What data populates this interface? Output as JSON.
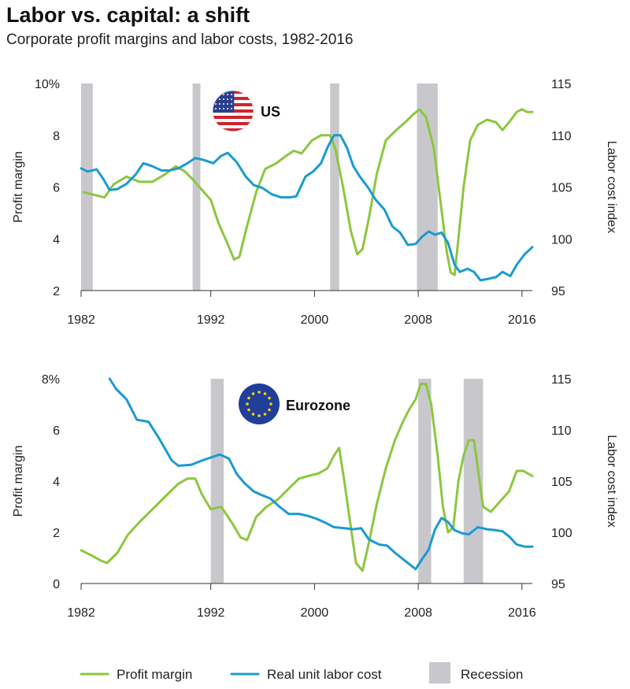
{
  "header": {
    "title": "Labor vs. capital: a shift",
    "subtitle": "Corporate profit margins and labor costs, 1982-2016"
  },
  "colors": {
    "profit_margin": "#8dc63f",
    "labor_cost": "#1a9bd0",
    "recession": "#c8c8cc",
    "axis": "#333333"
  },
  "legend": {
    "items": [
      {
        "label": "Profit margin",
        "type": "line",
        "color": "#8dc63f"
      },
      {
        "label": "Real unit labor cost",
        "type": "line",
        "color": "#1a9bd0"
      },
      {
        "label": "Recession",
        "type": "box",
        "color": "#c8c8cc"
      }
    ],
    "placement": "bottom"
  },
  "chart_data": [
    {
      "type": "line",
      "region": "US",
      "badge_icon": "us-flag-icon",
      "xlim": [
        1982,
        2016.8
      ],
      "x_ticks": [
        1982,
        1992,
        2000,
        2008,
        2016
      ],
      "left_axis": {
        "label": "Profit margin",
        "ylim": [
          2,
          10
        ],
        "ticks": [
          2,
          4,
          6,
          8,
          10
        ],
        "tick_labels": [
          "2",
          "4",
          "6",
          "8",
          "10%"
        ]
      },
      "right_axis": {
        "label": "Labor cost index",
        "ylim": [
          95,
          115
        ],
        "ticks": [
          95,
          100,
          105,
          110,
          115
        ],
        "tick_labels": [
          "95",
          "100",
          "105",
          "110",
          "115"
        ]
      },
      "grid": false,
      "recessions": [
        [
          1982.0,
          1982.9
        ],
        [
          1990.6,
          1991.2
        ],
        [
          2001.2,
          2001.9
        ],
        [
          2007.9,
          2009.5
        ]
      ],
      "series": [
        {
          "name": "Profit margin",
          "axis": "left",
          "color": "#8dc63f",
          "points": [
            [
              1982.2,
              5.8
            ],
            [
              1983,
              5.7
            ],
            [
              1983.8,
              5.6
            ],
            [
              1984.5,
              6.1
            ],
            [
              1985.5,
              6.4
            ],
            [
              1986.5,
              6.2
            ],
            [
              1987.5,
              6.2
            ],
            [
              1988.5,
              6.5
            ],
            [
              1989.3,
              6.8
            ],
            [
              1990,
              6.6
            ],
            [
              1990.6,
              6.3
            ],
            [
              1991.3,
              5.9
            ],
            [
              1992,
              5.5
            ],
            [
              1992.6,
              4.6
            ],
            [
              1993.3,
              3.8
            ],
            [
              1993.8,
              3.2
            ],
            [
              1994.2,
              3.3
            ],
            [
              1994.8,
              4.5
            ],
            [
              1995.5,
              5.8
            ],
            [
              1996.2,
              6.7
            ],
            [
              1997,
              6.9
            ],
            [
              1997.8,
              7.2
            ],
            [
              1998.4,
              7.4
            ],
            [
              1999,
              7.3
            ],
            [
              1999.8,
              7.8
            ],
            [
              2000.5,
              8.0
            ],
            [
              2001.2,
              8.0
            ],
            [
              2001.6,
              7.5
            ],
            [
              2002.2,
              6.0
            ],
            [
              2002.8,
              4.3
            ],
            [
              2003.3,
              3.4
            ],
            [
              2003.7,
              3.6
            ],
            [
              2004.2,
              4.8
            ],
            [
              2004.8,
              6.5
            ],
            [
              2005.5,
              7.8
            ],
            [
              2006.3,
              8.2
            ],
            [
              2007,
              8.5
            ],
            [
              2007.6,
              8.8
            ],
            [
              2008.1,
              9.0
            ],
            [
              2008.6,
              8.7
            ],
            [
              2009.2,
              7.5
            ],
            [
              2009.7,
              5.5
            ],
            [
              2010.2,
              3.5
            ],
            [
              2010.5,
              2.7
            ],
            [
              2010.8,
              2.6
            ],
            [
              2011.1,
              4.0
            ],
            [
              2011.5,
              6.0
            ],
            [
              2012,
              7.8
            ],
            [
              2012.6,
              8.4
            ],
            [
              2013.3,
              8.6
            ],
            [
              2014,
              8.5
            ],
            [
              2014.5,
              8.2
            ],
            [
              2015,
              8.5
            ],
            [
              2015.6,
              8.9
            ],
            [
              2016,
              9.0
            ],
            [
              2016.4,
              8.9
            ],
            [
              2016.8,
              8.9
            ]
          ]
        },
        {
          "name": "Real unit labor cost",
          "axis": "right",
          "color": "#1a9bd0",
          "points": [
            [
              1982,
              106.8
            ],
            [
              1982.5,
              106.5
            ],
            [
              1983.2,
              106.7
            ],
            [
              1983.7,
              105.8
            ],
            [
              1984.2,
              104.7
            ],
            [
              1984.8,
              104.8
            ],
            [
              1985.5,
              105.3
            ],
            [
              1986.2,
              106.2
            ],
            [
              1986.8,
              107.3
            ],
            [
              1987.5,
              107.0
            ],
            [
              1988.2,
              106.6
            ],
            [
              1988.8,
              106.6
            ],
            [
              1989.5,
              106.8
            ],
            [
              1990.2,
              107.3
            ],
            [
              1990.8,
              107.8
            ],
            [
              1991.5,
              107.6
            ],
            [
              1992.2,
              107.3
            ],
            [
              1992.8,
              108.0
            ],
            [
              1993.3,
              108.3
            ],
            [
              1994,
              107.4
            ],
            [
              1994.7,
              106.0
            ],
            [
              1995.3,
              105.2
            ],
            [
              1996,
              104.9
            ],
            [
              1996.7,
              104.3
            ],
            [
              1997.4,
              104.0
            ],
            [
              1998.1,
              104.0
            ],
            [
              1998.6,
              104.1
            ],
            [
              1999.3,
              106.0
            ],
            [
              1999.9,
              106.5
            ],
            [
              2000.5,
              107.3
            ],
            [
              2001,
              108.8
            ],
            [
              2001.5,
              110.0
            ],
            [
              2002,
              110.0
            ],
            [
              2002.5,
              108.8
            ],
            [
              2003,
              107.0
            ],
            [
              2003.5,
              106.0
            ],
            [
              2004.1,
              105.0
            ],
            [
              2004.7,
              103.8
            ],
            [
              2005.4,
              102.8
            ],
            [
              2006,
              101.2
            ],
            [
              2006.6,
              100.6
            ],
            [
              2007.2,
              99.4
            ],
            [
              2007.8,
              99.5
            ],
            [
              2008.3,
              100.2
            ],
            [
              2008.8,
              100.7
            ],
            [
              2009.3,
              100.4
            ],
            [
              2009.8,
              100.6
            ],
            [
              2010.3,
              99.6
            ],
            [
              2010.8,
              97.5
            ],
            [
              2011.2,
              96.8
            ],
            [
              2011.8,
              97.1
            ],
            [
              2012.3,
              96.8
            ],
            [
              2012.8,
              96.0
            ],
            [
              2013.3,
              96.1
            ],
            [
              2014,
              96.3
            ],
            [
              2014.5,
              96.8
            ],
            [
              2015.1,
              96.4
            ],
            [
              2015.6,
              97.5
            ],
            [
              2016.2,
              98.5
            ],
            [
              2016.8,
              99.2
            ]
          ]
        }
      ]
    },
    {
      "type": "line",
      "region": "Eurozone",
      "badge_icon": "eu-flag-icon",
      "xlim": [
        1982,
        2016.8
      ],
      "x_ticks": [
        1982,
        1992,
        2000,
        2008,
        2016
      ],
      "left_axis": {
        "label": "Profit margin",
        "ylim": [
          0,
          8
        ],
        "ticks": [
          0,
          2,
          4,
          6,
          8
        ],
        "tick_labels": [
          "0",
          "2",
          "4",
          "6",
          "8%"
        ]
      },
      "right_axis": {
        "label": "Labor cost index",
        "ylim": [
          95,
          115
        ],
        "ticks": [
          95,
          100,
          105,
          110,
          115
        ],
        "tick_labels": [
          "95",
          "100",
          "105",
          "110",
          "115"
        ]
      },
      "grid": false,
      "recessions": [
        [
          1992.0,
          1993.0
        ],
        [
          2008.0,
          2009.0
        ],
        [
          2011.5,
          2013.0
        ]
      ],
      "series": [
        {
          "name": "Profit margin",
          "axis": "left",
          "color": "#8dc63f",
          "points": [
            [
              1982,
              1.3
            ],
            [
              1982.8,
              1.1
            ],
            [
              1983.5,
              0.9
            ],
            [
              1984,
              0.8
            ],
            [
              1984.8,
              1.2
            ],
            [
              1985.6,
              1.9
            ],
            [
              1986.5,
              2.4
            ],
            [
              1987.5,
              2.9
            ],
            [
              1988.5,
              3.4
            ],
            [
              1989.5,
              3.9
            ],
            [
              1990.2,
              4.1
            ],
            [
              1990.8,
              4.1
            ],
            [
              1991.3,
              3.5
            ],
            [
              1992,
              2.9
            ],
            [
              1992.8,
              3.0
            ],
            [
              1993.6,
              2.4
            ],
            [
              1994.3,
              1.8
            ],
            [
              1994.8,
              1.7
            ],
            [
              1995.5,
              2.6
            ],
            [
              1996.3,
              3.0
            ],
            [
              1997.2,
              3.3
            ],
            [
              1998,
              3.7
            ],
            [
              1998.8,
              4.1
            ],
            [
              1999.5,
              4.2
            ],
            [
              2000.3,
              4.3
            ],
            [
              2001,
              4.5
            ],
            [
              2001.5,
              5.0
            ],
            [
              2001.9,
              5.3
            ],
            [
              2002.3,
              4.0
            ],
            [
              2002.8,
              2.2
            ],
            [
              2003.2,
              0.8
            ],
            [
              2003.7,
              0.5
            ],
            [
              2004.2,
              1.6
            ],
            [
              2004.8,
              3.1
            ],
            [
              2005.5,
              4.5
            ],
            [
              2006.2,
              5.6
            ],
            [
              2006.8,
              6.3
            ],
            [
              2007.3,
              6.8
            ],
            [
              2007.8,
              7.2
            ],
            [
              2008.2,
              7.8
            ],
            [
              2008.6,
              7.8
            ],
            [
              2009,
              7.0
            ],
            [
              2009.5,
              5.0
            ],
            [
              2009.9,
              3.0
            ],
            [
              2010.3,
              2.0
            ],
            [
              2010.7,
              2.2
            ],
            [
              2011.1,
              4.0
            ],
            [
              2011.5,
              5.0
            ],
            [
              2011.9,
              5.6
            ],
            [
              2012.3,
              5.6
            ],
            [
              2012.6,
              4.5
            ],
            [
              2013,
              3.0
            ],
            [
              2013.6,
              2.8
            ],
            [
              2014.3,
              3.2
            ],
            [
              2015,
              3.6
            ],
            [
              2015.6,
              4.4
            ],
            [
              2016.1,
              4.4
            ],
            [
              2016.8,
              4.2
            ]
          ]
        },
        {
          "name": "Real unit labor cost",
          "axis": "right",
          "color": "#1a9bd0",
          "points": [
            [
              1984.2,
              115
            ],
            [
              1984.7,
              114.0
            ],
            [
              1985.5,
              113.0
            ],
            [
              1986.3,
              111.0
            ],
            [
              1987.2,
              110.8
            ],
            [
              1988,
              109.2
            ],
            [
              1989,
              107.0
            ],
            [
              1989.5,
              106.5
            ],
            [
              1990.5,
              106.6
            ],
            [
              1991.3,
              107.0
            ],
            [
              1992,
              107.3
            ],
            [
              1992.7,
              107.6
            ],
            [
              1993.4,
              107.2
            ],
            [
              1994,
              105.7
            ],
            [
              1994.6,
              104.8
            ],
            [
              1995.3,
              104.0
            ],
            [
              1996,
              103.6
            ],
            [
              1996.6,
              103.3
            ],
            [
              1997.3,
              102.5
            ],
            [
              1998,
              101.8
            ],
            [
              1998.8,
              101.8
            ],
            [
              1999.5,
              101.6
            ],
            [
              2000.2,
              101.3
            ],
            [
              2000.9,
              100.9
            ],
            [
              2001.5,
              100.5
            ],
            [
              2002.3,
              100.4
            ],
            [
              2003,
              100.3
            ],
            [
              2003.6,
              100.4
            ],
            [
              2004.2,
              99.3
            ],
            [
              2005,
              98.8
            ],
            [
              2005.6,
              98.7
            ],
            [
              2006.2,
              98.0
            ],
            [
              2006.9,
              97.3
            ],
            [
              2007.4,
              96.8
            ],
            [
              2007.8,
              96.4
            ],
            [
              2008.2,
              97.2
            ],
            [
              2008.8,
              98.3
            ],
            [
              2009.3,
              100.3
            ],
            [
              2009.8,
              101.4
            ],
            [
              2010.3,
              101.0
            ],
            [
              2010.8,
              100.2
            ],
            [
              2011.4,
              99.9
            ],
            [
              2011.9,
              99.8
            ],
            [
              2012.6,
              100.5
            ],
            [
              2013.3,
              100.3
            ],
            [
              2014,
              100.2
            ],
            [
              2014.5,
              100.1
            ],
            [
              2015,
              99.6
            ],
            [
              2015.6,
              98.8
            ],
            [
              2016.2,
              98.6
            ],
            [
              2016.8,
              98.6
            ]
          ]
        }
      ]
    }
  ]
}
